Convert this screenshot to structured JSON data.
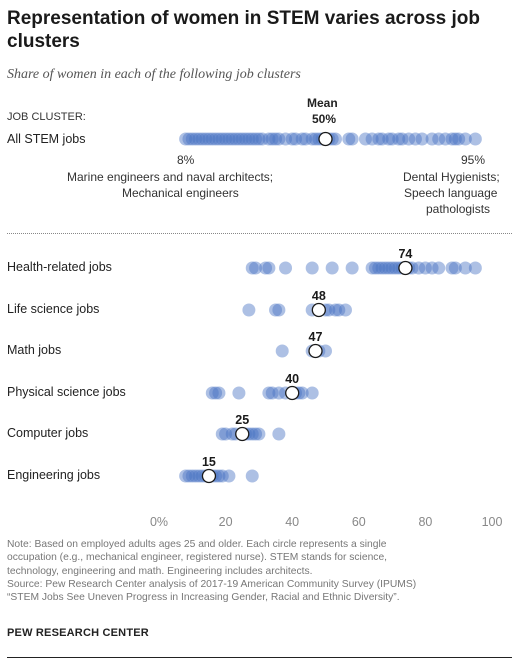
{
  "header": {
    "title": "Representation of women in STEM varies across job clusters",
    "subtitle": "Share of women in each of the following job clusters"
  },
  "top_section": {
    "cluster_header": "JOB CLUSTER:",
    "all_label": "All STEM jobs",
    "mean_label": "Mean",
    "mean_value": "50%",
    "min_value": "8%",
    "max_value": "95%",
    "min_note_line1": "Marine engineers and naval architects;",
    "min_note_line2": "Mechanical engineers",
    "max_note_line1": "Dental Hygienists;",
    "max_note_line2": "Speech language",
    "max_note_line3": "pathologists"
  },
  "notes": {
    "line1": "Note: Based on employed adults ages 25 and older. Each circle represents a single",
    "line2": "occupation (e.g., mechanical engineer, registered nurse). STEM stands for science,",
    "line3": "technology, engineering and math. Engineering includes architects.",
    "line4": "Source: Pew Research Center analysis of 2017-19 American Community Survey (IPUMS)",
    "line5": "“STEM Jobs See Uneven Progress in Increasing Gender, Racial and Ethnic Diversity”."
  },
  "brand": "PEW RESEARCH CENTER",
  "colors": {
    "dot": "#4a74c4",
    "dot_opacity": 0.45,
    "mean_fill": "#ffffff",
    "mean_stroke": "#1a1a1a",
    "axis_text": "#888888",
    "grid": "#cccccc"
  },
  "chart_data": {
    "type": "scatter",
    "xlim": [
      0,
      100
    ],
    "x_ticks": [
      "0%",
      "20",
      "40",
      "60",
      "80",
      "100"
    ],
    "all_stem": {
      "mean": 50,
      "points": [
        8,
        9,
        10,
        11,
        12,
        13,
        14,
        15,
        16,
        17,
        18,
        19,
        20,
        21,
        22,
        23,
        24,
        25,
        26,
        27,
        28,
        29,
        30,
        31,
        33,
        34,
        35,
        36,
        38,
        40,
        41,
        43,
        44,
        46,
        47,
        48,
        49,
        51,
        52,
        53,
        57,
        58,
        62,
        64,
        66,
        67,
        69,
        70,
        72,
        73,
        75,
        77,
        79,
        82,
        84,
        86,
        88,
        89,
        90,
        92,
        95
      ]
    },
    "clusters": [
      {
        "name": "Health-related jobs",
        "mean": 74,
        "mean_label": "74",
        "points": [
          28,
          29,
          32,
          33,
          38,
          46,
          52,
          58,
          64,
          65,
          66,
          67,
          68,
          69,
          70,
          71,
          72,
          73,
          75,
          76,
          78,
          80,
          82,
          84,
          88,
          89,
          92,
          95
        ]
      },
      {
        "name": "Life science jobs",
        "mean": 48,
        "mean_label": "48",
        "points": [
          27,
          35,
          36,
          46,
          48,
          50,
          51,
          53,
          54,
          56
        ]
      },
      {
        "name": "Math jobs",
        "mean": 47,
        "mean_label": "47",
        "points": [
          37,
          46,
          47,
          48,
          50
        ]
      },
      {
        "name": "Physical science jobs",
        "mean": 40,
        "mean_label": "40",
        "points": [
          16,
          17,
          18,
          24,
          33,
          34,
          36,
          38,
          40,
          41,
          42,
          43,
          46
        ]
      },
      {
        "name": "Computer jobs",
        "mean": 25,
        "mean_label": "25",
        "points": [
          19,
          20,
          22,
          23,
          25,
          26,
          27,
          28,
          29,
          30,
          36
        ]
      },
      {
        "name": "Engineering jobs",
        "mean": 15,
        "mean_label": "15",
        "points": [
          8,
          9,
          10,
          11,
          12,
          13,
          14,
          15,
          16,
          17,
          18,
          19,
          21,
          28
        ]
      }
    ]
  }
}
